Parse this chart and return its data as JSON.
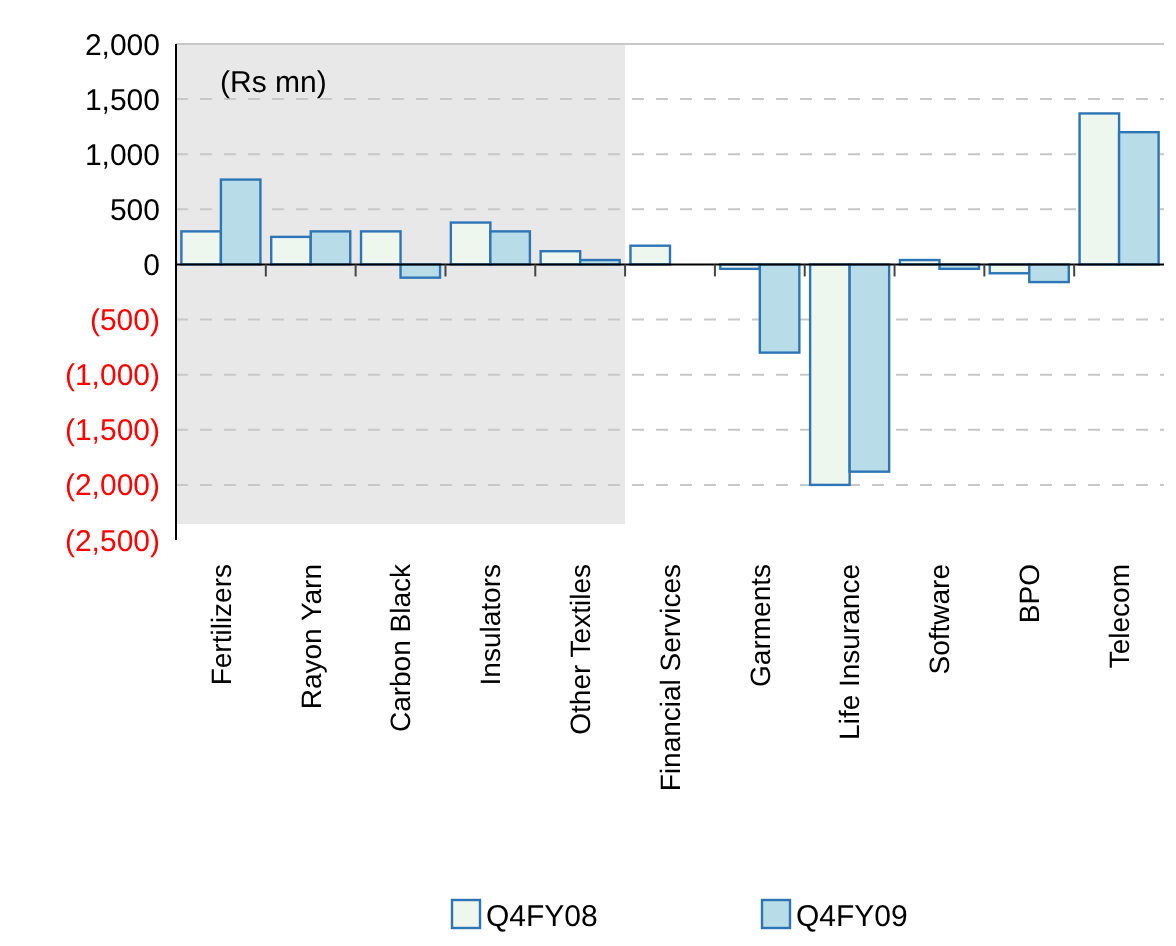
{
  "chart_data": {
    "type": "bar",
    "categories": [
      "Fertilizers",
      "Rayon Yarn",
      "Carbon Black",
      "Insulators",
      "Other Textiles",
      "Financial Services",
      "Garments",
      "Life Insurance",
      "Software",
      "BPO",
      "Telecom"
    ],
    "series": [
      {
        "name": "Q4FY08",
        "color": "#eef7ee",
        "values": [
          300,
          250,
          300,
          380,
          120,
          170,
          -40,
          -2000,
          40,
          -80,
          1370
        ]
      },
      {
        "name": "Q4FY09",
        "color": "#b8dde8",
        "values": [
          770,
          300,
          -120,
          300,
          40,
          0,
          -800,
          -1880,
          -40,
          -160,
          1200
        ]
      }
    ],
    "ylim": [
      -2500,
      2000
    ],
    "yticks": [
      {
        "value": -2500,
        "label": "(2,500)"
      },
      {
        "value": -2000,
        "label": "(2,000)"
      },
      {
        "value": -1500,
        "label": "(1,500)"
      },
      {
        "value": -1000,
        "label": "(1,000)"
      },
      {
        "value": -500,
        "label": "(500)"
      },
      0,
      500,
      {
        "value": 1000,
        "label": "1,000"
      },
      {
        "value": 1500,
        "label": "1,500"
      },
      {
        "value": 2000,
        "label": "2,000"
      }
    ],
    "grid": "y",
    "legend": "bottom",
    "annotations": [
      "(Rs mn)"
    ]
  }
}
